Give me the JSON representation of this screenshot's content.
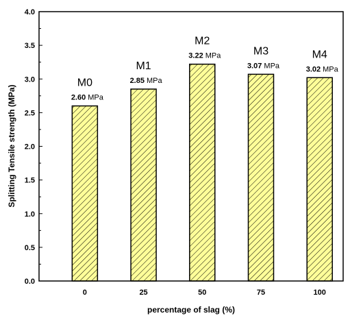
{
  "chart_data": {
    "type": "bar",
    "xlabel": "percentage of slag (%)",
    "ylabel": "Splitting Tensile strength (MPa)",
    "ylim": [
      0.0,
      4.0
    ],
    "yticks": [
      "0.0",
      "0.5",
      "1.0",
      "1.5",
      "2.0",
      "2.5",
      "3.0",
      "3.5",
      "4.0"
    ],
    "categories": [
      "0",
      "25",
      "50",
      "75",
      "100"
    ],
    "values": [
      2.6,
      2.85,
      3.22,
      3.07,
      3.02
    ],
    "bar_names": [
      "M0",
      "M1",
      "M2",
      "M3",
      "M4"
    ],
    "value_labels": [
      "2.60",
      "2.85",
      "3.22",
      "3.07",
      "3.02"
    ],
    "value_unit": "MPa",
    "bar_fill": "#ffff99",
    "hatch_color": "#000000",
    "grid": false
  }
}
